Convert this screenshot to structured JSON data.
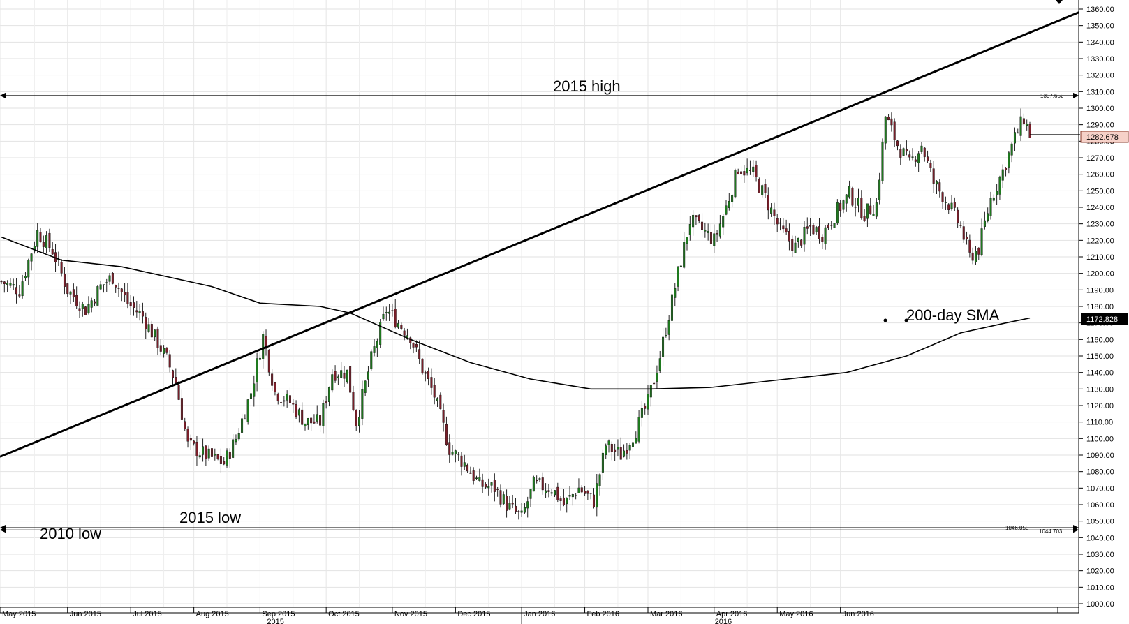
{
  "chart_data": {
    "type": "candlestick",
    "title": "",
    "ylim": [
      1000,
      1360
    ],
    "y_ticks": [
      "1000.00",
      "1010.00",
      "1020.00",
      "1030.00",
      "1040.00",
      "1050.00",
      "1060.00",
      "1070.00",
      "1080.00",
      "1090.00",
      "1100.00",
      "1110.00",
      "1120.00",
      "1130.00",
      "1140.00",
      "1150.00",
      "1160.00",
      "1170.00",
      "1180.00",
      "1190.00",
      "1200.00",
      "1210.00",
      "1220.00",
      "1230.00",
      "1240.00",
      "1250.00",
      "1260.00",
      "1270.00",
      "1280.00",
      "1290.00",
      "1300.00",
      "1310.00",
      "1320.00",
      "1330.00",
      "1340.00",
      "1350.00",
      "1360.00"
    ],
    "x_months": [
      "May 2015",
      "Jun 2015",
      "Jul 2015",
      "Aug 2015",
      "Sep 2015",
      "Oct 2015",
      "Nov 2015",
      "Dec 2015",
      "Jan 2016",
      "Feb 2016",
      "Mar 2016",
      "Apr 2016",
      "May 2016",
      "Jun 2016"
    ],
    "x_years": [
      "2015",
      "2016"
    ],
    "grid": true,
    "colors": {
      "up": "#1f7a1f",
      "down": "#7a1f2a",
      "line": "#000000",
      "last_price_bg": "#f6d1c8",
      "sma_label_bg": "#000000"
    },
    "close_path": [
      [
        0,
        1195
      ],
      [
        6,
        1190
      ],
      [
        12,
        1225
      ],
      [
        17,
        1214
      ],
      [
        22,
        1190
      ],
      [
        28,
        1178
      ],
      [
        33,
        1192
      ],
      [
        37,
        1198
      ],
      [
        42,
        1182
      ],
      [
        47,
        1174
      ],
      [
        52,
        1158
      ],
      [
        55,
        1148
      ],
      [
        58,
        1134
      ],
      [
        62,
        1096
      ],
      [
        68,
        1090
      ],
      [
        74,
        1085
      ],
      [
        78,
        1100
      ],
      [
        83,
        1128
      ],
      [
        87,
        1162
      ],
      [
        91,
        1128
      ],
      [
        96,
        1122
      ],
      [
        101,
        1110
      ],
      [
        106,
        1110
      ],
      [
        110,
        1140
      ],
      [
        115,
        1140
      ],
      [
        118,
        1110
      ],
      [
        123,
        1148
      ],
      [
        128,
        1178
      ],
      [
        133,
        1168
      ],
      [
        136,
        1162
      ],
      [
        140,
        1142
      ],
      [
        144,
        1126
      ],
      [
        149,
        1094
      ],
      [
        154,
        1085
      ],
      [
        159,
        1072
      ],
      [
        164,
        1070
      ],
      [
        168,
        1060
      ],
      [
        173,
        1052
      ],
      [
        177,
        1072
      ],
      [
        183,
        1070
      ],
      [
        187,
        1060
      ],
      [
        192,
        1070
      ],
      [
        197,
        1062
      ],
      [
        201,
        1096
      ],
      [
        206,
        1090
      ],
      [
        211,
        1105
      ],
      [
        215,
        1122
      ],
      [
        219,
        1150
      ],
      [
        222,
        1175
      ],
      [
        225,
        1200
      ],
      [
        229,
        1232
      ],
      [
        232,
        1228
      ],
      [
        237,
        1220
      ],
      [
        241,
        1240
      ],
      [
        245,
        1264
      ],
      [
        250,
        1260
      ],
      [
        254,
        1246
      ],
      [
        259,
        1226
      ],
      [
        264,
        1216
      ],
      [
        269,
        1228
      ],
      [
        273,
        1224
      ],
      [
        278,
        1238
      ],
      [
        282,
        1248
      ],
      [
        287,
        1236
      ],
      [
        291,
        1242
      ],
      [
        294,
        1295
      ],
      [
        298,
        1278
      ],
      [
        302,
        1266
      ],
      [
        306,
        1278
      ],
      [
        310,
        1255
      ],
      [
        315,
        1242
      ],
      [
        319,
        1228
      ],
      [
        322,
        1210
      ],
      [
        325,
        1215
      ],
      [
        329,
        1245
      ],
      [
        333,
        1262
      ],
      [
        337,
        1282
      ],
      [
        340,
        1294
      ],
      [
        342,
        1284
      ]
    ],
    "sma_200": [
      [
        0,
        1222
      ],
      [
        20,
        1208
      ],
      [
        40,
        1204
      ],
      [
        55,
        1198
      ],
      [
        70,
        1192
      ],
      [
        86,
        1182
      ],
      [
        106,
        1180
      ],
      [
        116,
        1176
      ],
      [
        136,
        1160
      ],
      [
        156,
        1146
      ],
      [
        176,
        1136
      ],
      [
        196,
        1130
      ],
      [
        216,
        1130
      ],
      [
        236,
        1131
      ],
      [
        256,
        1135
      ],
      [
        281,
        1140
      ],
      [
        301,
        1150
      ],
      [
        319,
        1164
      ],
      [
        334,
        1170
      ],
      [
        342,
        1173
      ]
    ],
    "trendline": {
      "start": [
        0,
        1089
      ],
      "end": [
        342,
        1358
      ]
    },
    "hlines": [
      {
        "name": "2015 high",
        "value": 1307.652,
        "label": "1307.652"
      },
      {
        "name": "2015 low",
        "value": 1046.05,
        "label": "1046.050"
      },
      {
        "name": "2010 low",
        "value": 1044.703,
        "label": "1044.703"
      }
    ],
    "annotations": {
      "high_2015": "2015 high",
      "low_2015": "2015 low",
      "low_2010": "2010 low",
      "sma": "200-day SMA"
    },
    "last_price": "1282.678",
    "sma_value": "1172.828"
  }
}
